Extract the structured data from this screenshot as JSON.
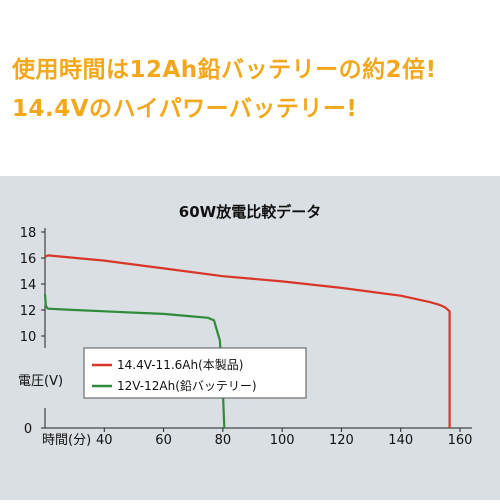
{
  "headlines": [
    "使用時間は12Ah鉛バッテリーの約2倍!",
    "14.4Vのハイパワーバッテリー!"
  ],
  "colors": {
    "headline": "#f3a81c",
    "panel_bg": "#d9dfe2",
    "series_red": "#d9352a",
    "series_green": "#2e8b3a"
  },
  "chart_data": {
    "type": "line",
    "title": "60W放電比較データ",
    "xlabel": "時間(分)",
    "ylabel": "電圧(V)",
    "xlim": [
      20,
      160
    ],
    "ylim": [
      0,
      18
    ],
    "y_ticks": [
      0,
      10,
      12,
      14,
      16,
      18
    ],
    "x_ticks": [
      40,
      60,
      80,
      100,
      120,
      140,
      160
    ],
    "y_tick_labels": [
      "0",
      "10",
      "12",
      "14",
      "16",
      "18"
    ],
    "x_tick_labels": [
      "40",
      "60",
      "80",
      "100",
      "120",
      "140",
      "160"
    ],
    "y_axis_break": true,
    "grid": false,
    "legend_position": "center-left",
    "series": [
      {
        "name": "14.4V-11.6Ah(本製品)",
        "color": "#d9352a",
        "x": [
          20,
          21,
          40,
          60,
          80,
          100,
          120,
          140,
          150,
          153,
          155,
          156.5,
          156.5
        ],
        "y": [
          16.1,
          16.2,
          15.8,
          15.2,
          14.6,
          14.2,
          13.7,
          13.1,
          12.6,
          12.4,
          12.2,
          11.9,
          0
        ]
      },
      {
        "name": "12V-12Ah(鉛バッテリー)",
        "color": "#2e8b3a",
        "x": [
          20,
          20.3,
          21,
          30,
          40,
          50,
          60,
          70,
          75,
          77,
          79,
          80,
          80.5
        ],
        "y": [
          13.2,
          12.3,
          12.1,
          12.0,
          11.9,
          11.8,
          11.7,
          11.5,
          11.4,
          11.2,
          9.5,
          4.0,
          0
        ]
      }
    ]
  }
}
